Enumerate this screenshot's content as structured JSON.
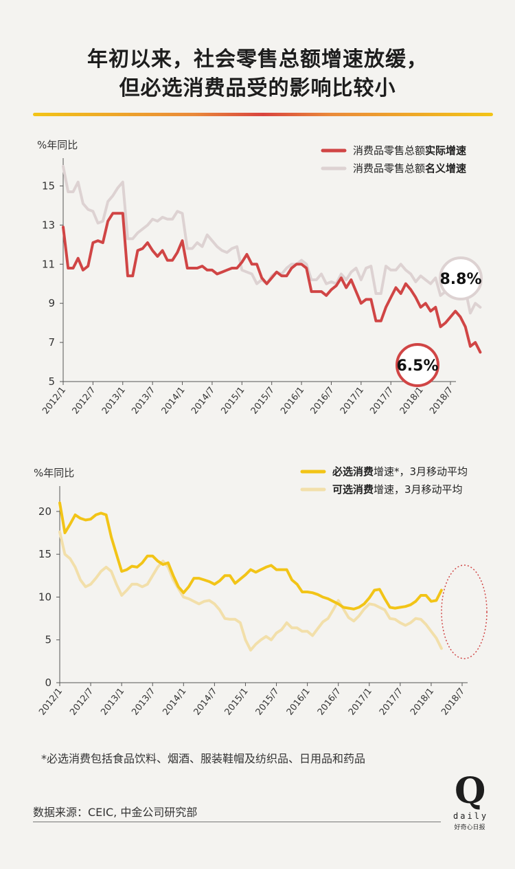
{
  "title": {
    "line1": "年初以来，社会零售总额增速放缓，",
    "line2": "但必选消费品受的影响比较小"
  },
  "footnote": "*必选消费包括食品饮料、烟酒、服装鞋帽及纺织品、日用品和药品",
  "source": "数据来源：CEIC, 中金公司研究部",
  "logo": {
    "mark": "Q",
    "word": "daily",
    "sub": "好奇心日报"
  },
  "colors": {
    "real": "#d04545",
    "nominal": "#ddd2d2",
    "staples": "#f2c417",
    "discretionary": "#f2dfaa",
    "axis": "#555555",
    "text": "#333333"
  },
  "chart_data": [
    {
      "type": "line",
      "ylabel": "%年同比",
      "ylim": [
        5,
        16
      ],
      "yticks": [
        5,
        7,
        9,
        11,
        13,
        15
      ],
      "xticks": [
        "2012/1",
        "2012/7",
        "2013/1",
        "2013/7",
        "2014/1",
        "2014/7",
        "2015/1",
        "2015/7",
        "2016/1",
        "2016/7",
        "2017/1",
        "2017/7",
        "2018/1",
        "2018/7"
      ],
      "legend_position": "top-right",
      "series": [
        {
          "name_plain": "消费品零售总额",
          "name_bold": "实际增速",
          "key": "real",
          "values": [
            12.9,
            10.8,
            10.8,
            11.3,
            10.7,
            10.9,
            12.1,
            12.2,
            12.1,
            13.2,
            13.6,
            13.6,
            13.6,
            10.4,
            10.4,
            11.7,
            11.8,
            12.1,
            11.7,
            11.4,
            11.7,
            11.2,
            11.2,
            11.6,
            12.2,
            10.8,
            10.8,
            10.8,
            10.9,
            10.7,
            10.7,
            10.5,
            10.6,
            10.7,
            10.8,
            10.8,
            11.1,
            11.5,
            11.0,
            11.0,
            10.3,
            10.0,
            10.3,
            10.6,
            10.4,
            10.4,
            10.8,
            11.0,
            11.0,
            10.8,
            9.6,
            9.6,
            9.6,
            9.4,
            9.7,
            9.9,
            10.3,
            9.8,
            10.2,
            9.6,
            9.0,
            9.2,
            9.2,
            8.1,
            8.1,
            8.8,
            9.3,
            9.8,
            9.5,
            10.0,
            9.7,
            9.3,
            8.8,
            9.0,
            8.6,
            8.8,
            7.8,
            8.0,
            8.3,
            8.6,
            8.3,
            7.8,
            6.8,
            7.0,
            6.5
          ]
        },
        {
          "name_plain": "消费品零售总额",
          "name_bold": "名义增速",
          "key": "nominal",
          "values": [
            16.0,
            14.7,
            14.7,
            15.2,
            14.1,
            13.8,
            13.7,
            13.1,
            13.2,
            14.2,
            14.5,
            14.9,
            15.2,
            12.3,
            12.3,
            12.6,
            12.8,
            13.0,
            13.3,
            13.2,
            13.4,
            13.3,
            13.3,
            13.7,
            13.6,
            11.8,
            11.8,
            12.1,
            11.9,
            12.5,
            12.2,
            11.9,
            11.7,
            11.6,
            11.8,
            11.9,
            10.7,
            10.6,
            10.5,
            10.0,
            10.2,
            10.0,
            10.4,
            10.6,
            10.5,
            10.8,
            11.0,
            11.0,
            11.2,
            11.0,
            10.2,
            10.2,
            10.5,
            10.0,
            10.1,
            10.0,
            10.5,
            10.2,
            10.6,
            10.8,
            10.2,
            10.8,
            10.9,
            9.5,
            9.5,
            10.9,
            10.7,
            10.7,
            11.0,
            10.7,
            10.5,
            10.1,
            10.4,
            10.2,
            10.0,
            10.3,
            9.4,
            9.6,
            10.0,
            10.2,
            10.1,
            9.7,
            8.5,
            9.0,
            8.8
          ]
        }
      ],
      "annotations": [
        "8.8%",
        "6.5%"
      ]
    },
    {
      "type": "line",
      "ylabel": "%年同比",
      "ylim": [
        0,
        22
      ],
      "yticks": [
        0,
        5,
        10,
        15,
        20
      ],
      "xticks": [
        "2012/1",
        "2012/7",
        "2013/1",
        "2013/7",
        "2014/1",
        "2014/7",
        "2015/1",
        "2015/7",
        "2016/1",
        "2016/7",
        "2017/1",
        "2017/7",
        "2018/1",
        "2018/7"
      ],
      "legend_position": "top-right",
      "series": [
        {
          "name_bold": "必选消费",
          "name_plain": "增速*，3月移动平均",
          "key": "staples",
          "values": [
            21.0,
            17.5,
            18.5,
            19.6,
            19.2,
            19.0,
            19.1,
            19.6,
            19.8,
            19.6,
            17.0,
            15.0,
            13.0,
            13.2,
            13.6,
            13.5,
            14.0,
            14.8,
            14.8,
            14.2,
            13.8,
            14.0,
            12.5,
            11.2,
            10.5,
            11.2,
            12.2,
            12.2,
            12.0,
            11.8,
            11.5,
            11.9,
            12.5,
            12.5,
            11.6,
            12.1,
            12.6,
            13.2,
            12.9,
            13.2,
            13.5,
            13.7,
            13.2,
            13.2,
            13.2,
            12.0,
            11.5,
            10.6,
            10.6,
            10.5,
            10.3,
            10.0,
            9.8,
            9.5,
            9.2,
            8.8,
            8.7,
            8.6,
            8.8,
            9.2,
            9.9,
            10.8,
            10.9,
            9.8,
            8.8,
            8.7,
            8.8,
            8.9,
            9.1,
            9.5,
            10.2,
            10.2,
            9.5,
            9.6,
            10.8
          ]
        },
        {
          "name_bold": "可选消费",
          "name_plain": "增速，3月移动平均",
          "key": "discretionary",
          "values": [
            17.6,
            15.0,
            14.5,
            13.5,
            12.0,
            11.2,
            11.5,
            12.2,
            13.0,
            13.5,
            13.0,
            11.5,
            10.2,
            10.8,
            11.5,
            11.5,
            11.2,
            11.5,
            12.5,
            13.5,
            14.2,
            13.5,
            12.0,
            11.0,
            10.0,
            9.8,
            9.5,
            9.2,
            9.5,
            9.6,
            9.2,
            8.5,
            7.5,
            7.4,
            7.4,
            7.0,
            5.0,
            3.8,
            4.5,
            5.0,
            5.4,
            5.0,
            5.8,
            6.2,
            7.0,
            6.4,
            6.4,
            6.0,
            6.0,
            5.5,
            6.3,
            7.1,
            7.5,
            8.5,
            9.6,
            8.6,
            7.6,
            7.2,
            7.8,
            8.6,
            9.2,
            9.1,
            8.8,
            8.5,
            7.5,
            7.4,
            7.0,
            6.7,
            7.0,
            7.5,
            7.4,
            6.8,
            6.0,
            5.2,
            4.0
          ]
        }
      ]
    }
  ]
}
